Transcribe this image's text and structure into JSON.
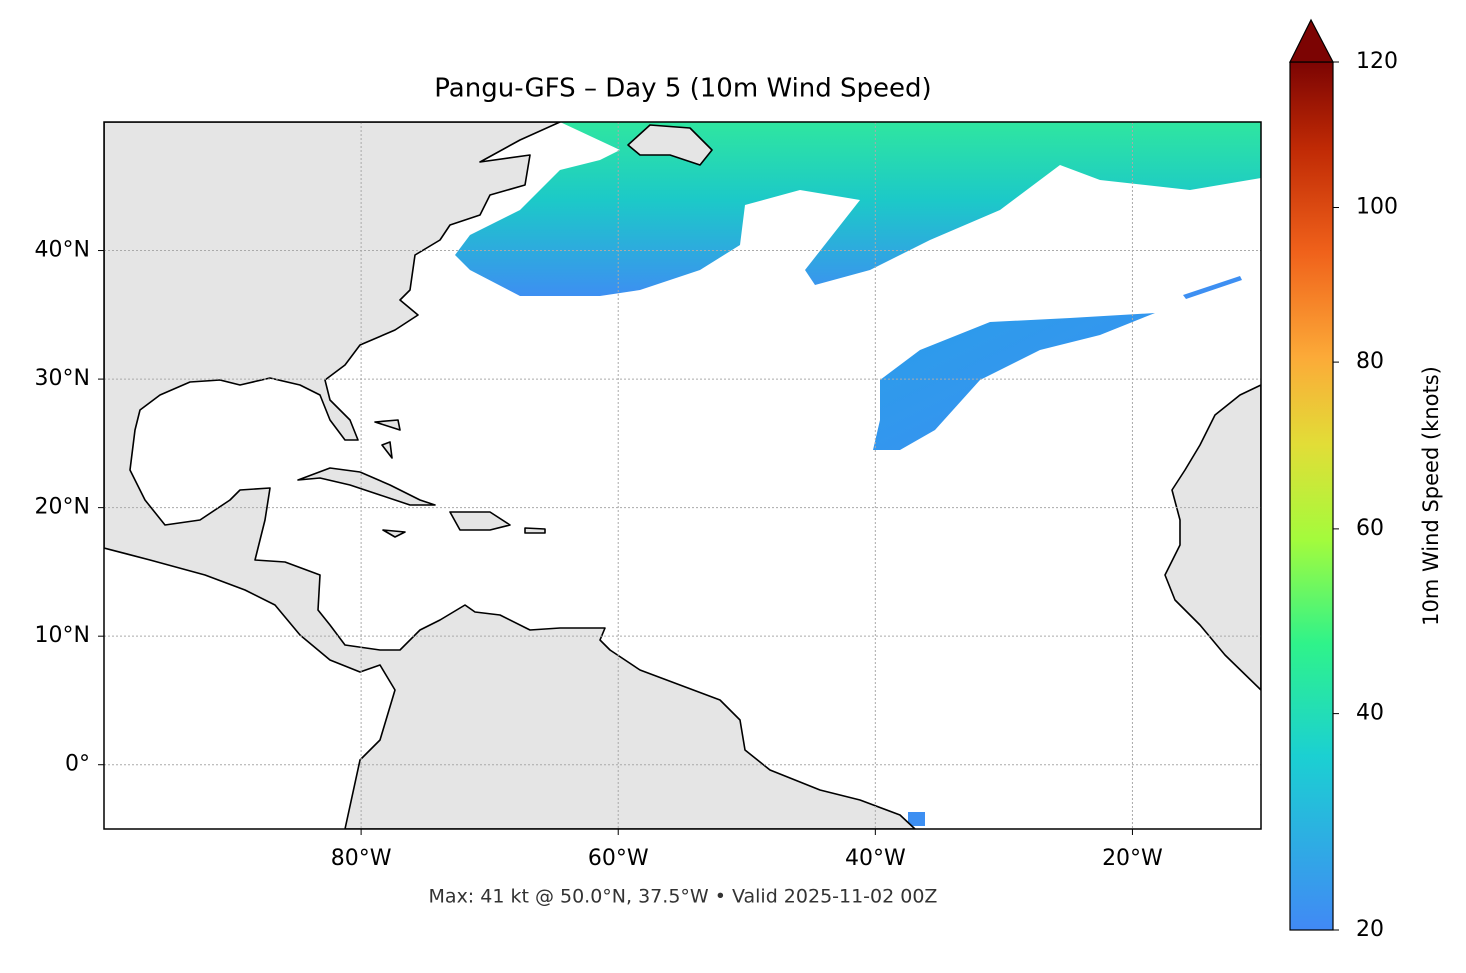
{
  "chart_data": {
    "type": "map",
    "title": "Pangu-GFS – Day 5 (10m Wind Speed)",
    "caption": "Max: 41 kt @ 50.0°N, 37.5°W • Valid 2025-11-02 00Z",
    "xlim": [
      -100,
      -10
    ],
    "ylim": [
      -5,
      50
    ],
    "xticks": [
      {
        "value": -80,
        "label": "80°W"
      },
      {
        "value": -60,
        "label": "60°W"
      },
      {
        "value": -40,
        "label": "40°W"
      },
      {
        "value": -20,
        "label": "20°W"
      }
    ],
    "yticks": [
      {
        "value": 0,
        "label": "0°"
      },
      {
        "value": 10,
        "label": "10°N"
      },
      {
        "value": 20,
        "label": "20°N"
      },
      {
        "value": 30,
        "label": "30°N"
      },
      {
        "value": 40,
        "label": "40°N"
      }
    ],
    "grid": true,
    "colorbar": {
      "label": "10m Wind Speed (knots)",
      "lim": [
        20,
        120
      ],
      "ticks": [
        20,
        40,
        60,
        80,
        100,
        120
      ]
    }
  }
}
